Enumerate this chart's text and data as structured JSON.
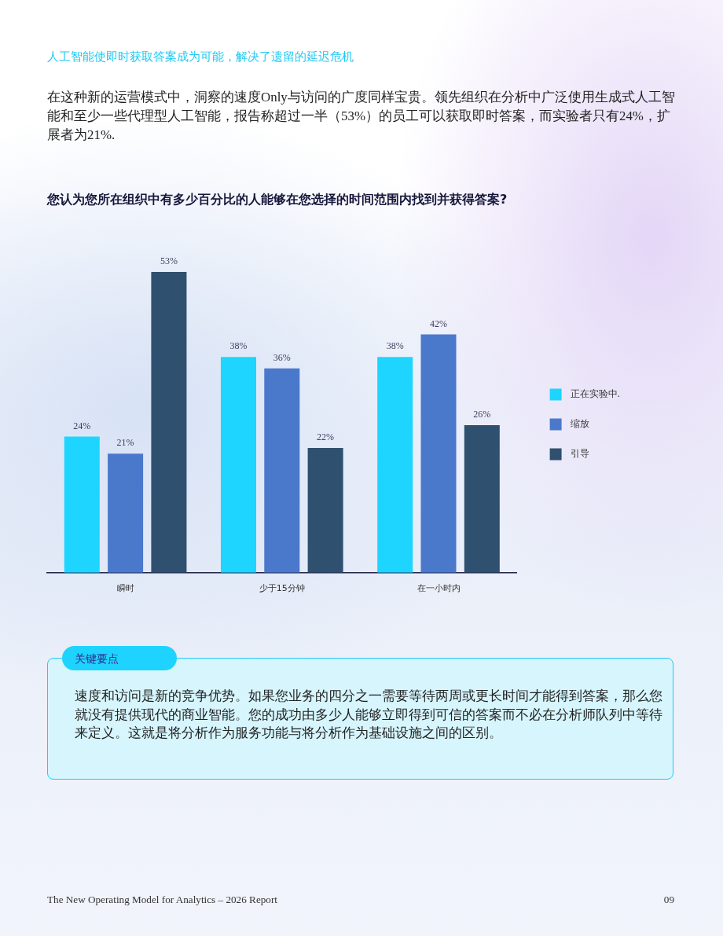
{
  "chart_data": {
    "type": "bar",
    "title": "您认为您所在组织中有多少百分比的人能够在您选择的时间范围内找到并获得答案?",
    "categories": [
      "瞬时",
      "少于15分钟",
      "在一小时内"
    ],
    "series": [
      {
        "name": "正在实验中.",
        "color": "#1ed5ff",
        "values": [
          24,
          38,
          38
        ],
        "value_labels": [
          "24%",
          "38%",
          "38%"
        ]
      },
      {
        "name": "缩放",
        "color": "#4a79cc",
        "values": [
          21,
          36,
          42
        ],
        "value_labels": [
          "21%",
          "36%",
          "42%"
        ]
      },
      {
        "name": "引导",
        "color": "#2f506f",
        "values": [
          53,
          22,
          26
        ],
        "value_labels": [
          "53%",
          "22%",
          "26%"
        ]
      }
    ],
    "legend": "right",
    "tick_labels": "x",
    "annotations": [
      "人工智能使即时获取答案成为可能，解决了遗留的延迟危机",
      "在这种新的运营模式中，洞察的速度Only与访问的广度同样宝贵。领先组织在分析中广泛使用生成式人工智能和至少一些代理型人工智能，报告称超过一半（53%）的员工可以获取即时答案，而实验者只有24%，扩展者为21%.",
      "关键要点",
      "速度和访问是新的竞争优势。如果您业务的四分之一需要等待两周或更长时间才能得到答案，那么您就没有提供现代的商业智能。您的成功由多少人能够立即得到可信的答案而不必在分析师队列中等待来定义。这就是将分析作为服务功能与将分析作为基础设施之间的区别。",
      "The New Operating Model for Analytics – 2026 Report",
      "09"
    ]
  }
}
